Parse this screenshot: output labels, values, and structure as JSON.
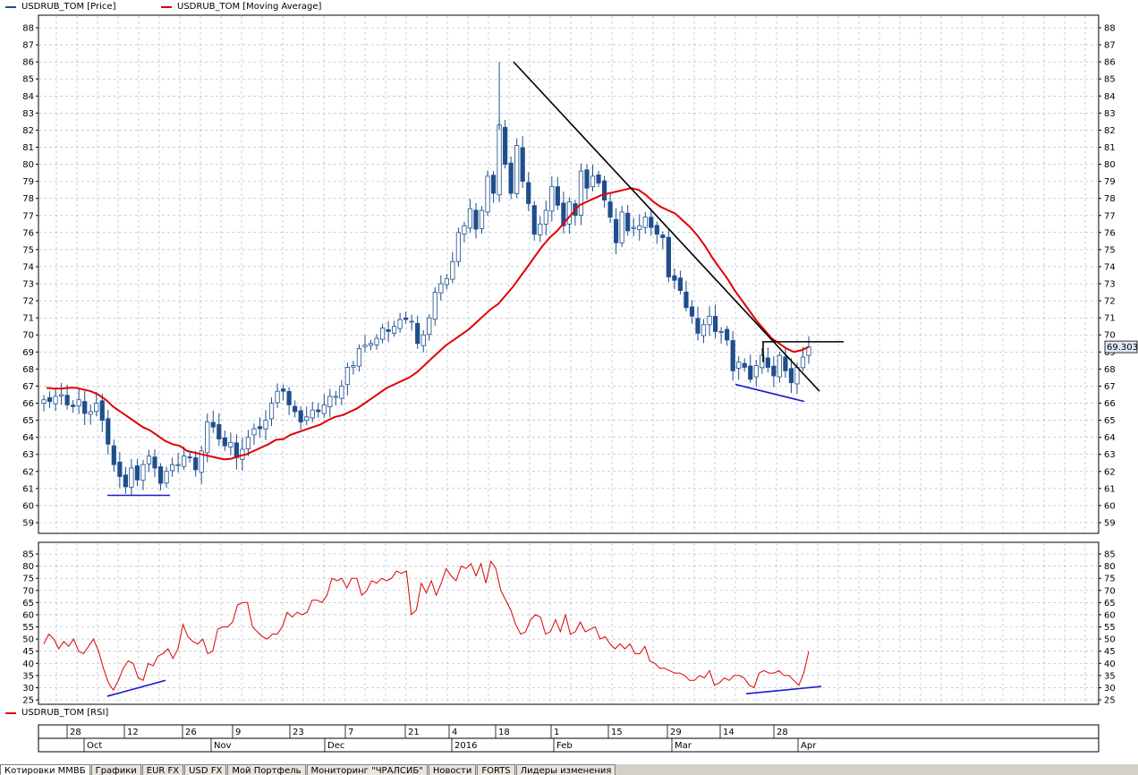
{
  "legend": {
    "price_label": "USDRUB_TOM [Price]",
    "ma_label": "USDRUB_TOM [Moving Average]",
    "rsi_label": "USDRUB_TOM [RSI]"
  },
  "colors": {
    "candle_body": "#1f4e8c",
    "ma": "#e00000",
    "rsi": "#e00000",
    "trend": "#000000",
    "divergence": "#1a1ad0",
    "grid": "#a6b3c6",
    "price_tag_bg": "#dfe7f7"
  },
  "chart_data": [
    {
      "type": "candlestick",
      "ylim": [
        58,
        88
      ],
      "y_ticks": [
        59,
        60,
        61,
        62,
        63,
        64,
        65,
        66,
        67,
        68,
        69,
        70,
        71,
        72,
        73,
        74,
        75,
        76,
        77,
        78,
        79,
        80,
        81,
        82,
        83,
        84,
        85,
        86,
        87,
        88
      ],
      "last_price_label": "69.303",
      "series": [
        {
          "name": "USDRUB_TOM [Price]",
          "close": [
            66.2,
            66.1,
            66.4,
            66.5,
            65.9,
            65.8,
            66.2,
            65.4,
            65.5,
            66.0,
            65.0,
            63.6,
            62.4,
            61.7,
            61.1,
            62.2,
            61.5,
            62.4,
            62.9,
            62.2,
            61.3,
            62.0,
            62.4,
            62.4,
            62.9,
            62.8,
            62.1,
            63.2,
            64.9,
            64.6,
            63.9,
            63.5,
            63.7,
            62.8,
            63.3,
            64.0,
            64.5,
            64.5,
            65.0,
            66.0,
            66.7,
            66.7,
            65.9,
            65.5,
            64.9,
            65.2,
            65.6,
            65.5,
            65.9,
            66.4,
            66.4,
            67.0,
            68.1,
            68.2,
            69.2,
            69.4,
            69.5,
            69.8,
            70.4,
            70.2,
            70.5,
            70.9,
            70.9,
            70.8,
            69.5,
            70.0,
            71.0,
            72.5,
            73.0,
            73.3,
            74.3,
            76.0,
            76.4,
            77.4,
            76.2,
            77.3,
            79.3,
            78.3,
            82.3,
            80.0,
            78.3,
            81.1,
            79.0,
            77.7,
            75.9,
            76.5,
            77.3,
            78.7,
            77.6,
            76.4,
            77.8,
            77.0,
            79.6,
            78.6,
            79.3,
            78.9,
            77.9,
            76.9,
            75.4,
            77.2,
            76.1,
            76.3,
            76.4,
            76.9,
            76.3,
            75.9,
            75.7,
            73.4,
            73.2,
            72.6,
            71.6,
            71.1,
            70.1,
            70.6,
            71.1,
            70.2,
            70.2,
            69.7,
            67.9,
            68.4,
            68.1,
            67.4,
            68.2,
            68.8,
            68.1,
            67.6,
            68.8,
            67.9,
            67.2,
            68.1,
            68.7,
            69.3
          ]
        },
        {
          "name": "USDRUB_TOM [Moving Average]",
          "values": [
            66.9,
            66.85,
            66.85,
            66.9,
            66.9,
            66.8,
            66.7,
            66.5,
            66.2,
            65.8,
            65.5,
            65.2,
            64.9,
            64.6,
            64.4,
            64.1,
            63.8,
            63.6,
            63.5,
            63.2,
            63.1,
            63.0,
            62.9,
            62.8,
            62.7,
            62.75,
            62.9,
            63.0,
            63.2,
            63.4,
            63.6,
            63.85,
            63.9,
            64.15,
            64.3,
            64.45,
            64.6,
            64.75,
            65.0,
            65.2,
            65.3,
            65.5,
            65.7,
            66.0,
            66.3,
            66.6,
            66.9,
            67.1,
            67.3,
            67.5,
            67.8,
            68.2,
            68.6,
            69.0,
            69.4,
            69.7,
            70.0,
            70.3,
            70.7,
            71.1,
            71.5,
            71.8,
            72.3,
            72.8,
            73.4,
            74.0,
            74.6,
            75.2,
            75.7,
            76.1,
            76.6,
            77.1,
            77.6,
            77.8,
            78.0,
            78.2,
            78.3,
            78.4,
            78.5,
            78.6,
            78.5,
            78.2,
            77.8,
            77.5,
            77.3,
            77.1,
            76.7,
            76.3,
            75.8,
            75.2,
            74.5,
            73.9,
            73.3,
            72.6,
            72.0,
            71.4,
            70.8,
            70.3,
            69.8,
            69.5,
            69.2,
            69.0,
            69.1,
            69.3
          ]
        }
      ]
    },
    {
      "type": "line",
      "ylim": [
        25,
        85
      ],
      "y_ticks": [
        25,
        30,
        35,
        40,
        45,
        50,
        55,
        60,
        65,
        70,
        75,
        80,
        85
      ],
      "series": [
        {
          "name": "USDRUB_TOM [RSI]",
          "values": [
            48,
            52,
            50,
            46,
            49,
            47,
            50,
            45,
            44,
            47,
            50,
            45,
            38,
            32,
            29,
            33,
            38,
            41,
            40,
            34,
            33,
            40,
            39,
            43,
            44,
            46,
            42,
            46,
            56,
            51,
            49,
            48,
            50,
            44,
            45,
            54,
            55,
            55,
            57,
            64,
            65,
            65,
            55,
            53,
            51,
            50,
            52,
            52,
            55,
            61,
            59,
            61,
            60,
            61,
            66,
            66,
            65,
            68,
            75,
            74,
            75,
            71,
            75,
            75,
            68,
            70,
            74,
            73,
            75,
            74,
            75,
            78,
            77,
            78,
            60,
            62,
            73,
            69,
            74,
            68,
            73,
            79,
            76,
            74,
            80,
            79,
            81,
            76,
            81,
            73,
            82,
            79,
            70,
            66,
            62,
            56,
            52,
            53,
            58,
            60,
            59,
            52,
            53,
            58,
            53,
            60,
            52,
            53,
            57,
            53,
            54,
            55,
            50,
            51,
            48,
            46,
            48,
            46,
            48,
            44,
            44,
            47,
            41,
            40,
            38,
            38,
            37,
            36,
            36,
            35,
            33,
            33,
            35,
            34,
            37,
            31,
            32,
            34,
            33,
            35,
            35,
            34,
            31,
            30,
            36,
            37,
            36,
            36,
            37,
            35,
            35,
            33,
            31,
            36,
            45
          ]
        }
      ]
    }
  ],
  "x_axis": {
    "days": [
      "28",
      "12",
      "26",
      "9",
      "23",
      "7",
      "21",
      "4",
      "18",
      "1",
      "15",
      "29",
      "14",
      "28"
    ],
    "months": [
      "Oct",
      "Nov",
      "Dec",
      "2016",
      "Feb",
      "Mar",
      "Apr"
    ]
  },
  "tabs": [
    "Котировки ММВБ",
    "Графики",
    "EUR FX",
    "USD FX",
    "Мой Портфель",
    "Мониторинг \"ЧРАЛСИБ\"",
    "Новости",
    "FORTS",
    "Лидеры изменения"
  ]
}
